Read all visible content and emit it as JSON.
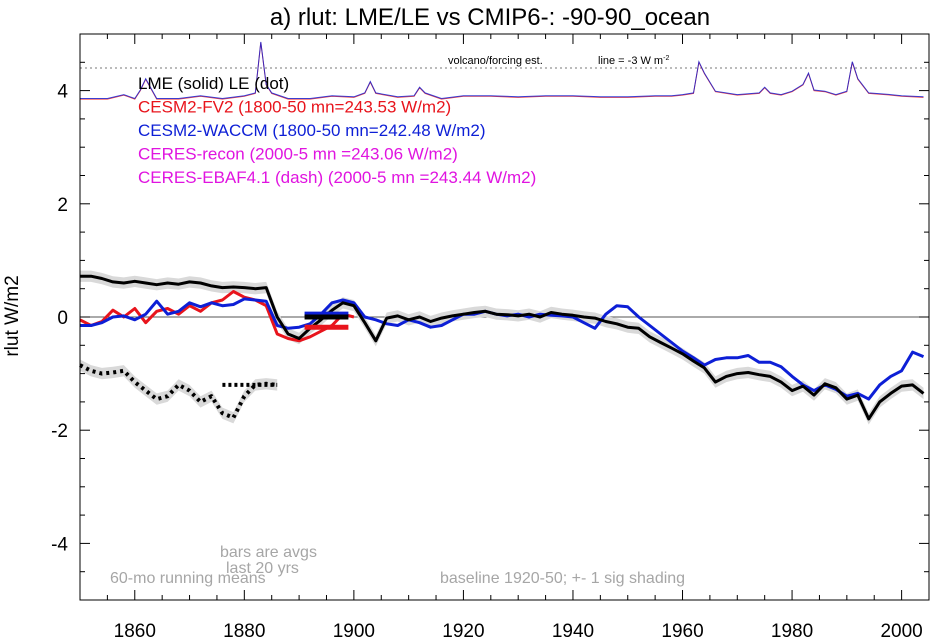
{
  "chart_data": {
    "type": "line",
    "title": "a) rlut: LME/LE vs CMIP6-: -90-90_ocean",
    "ylabel": "rlut W/m2",
    "xlabel": "",
    "xlim": [
      1850,
      2005
    ],
    "ylim": [
      -5,
      5
    ],
    "x_ticks": [
      1860,
      1880,
      1900,
      1920,
      1940,
      1960,
      1980,
      2000
    ],
    "y_ticks": [
      -4,
      -2,
      0,
      2,
      4
    ],
    "grid": false,
    "legend": [
      {
        "label": "LME (solid)   LE (dot)",
        "color": "#000000"
      },
      {
        "label": "CESM2-FV2 (1800-50 mn=243.53 W/m2)",
        "color": "#e8141c"
      },
      {
        "label": "CESM2-WACCM (1800-50 mn=242.48 W/m2)",
        "color": "#0d1fd6"
      },
      {
        "label": "CERES-recon (2000-5 mn =243.06 W/m2)",
        "color": "#e014e0"
      },
      {
        "label": "CERES-EBAF4.1 (dash) (2000-5 mn =243.44 W/m2)",
        "color": "#e014e0"
      }
    ],
    "annotations": {
      "volcano_label": "volcano/forcing est.",
      "line_label": "line = -3 W m",
      "line_label_sup": "-2",
      "bars_label_1": "bars are avgs",
      "bars_label_2": "last 20 yrs",
      "running_label": "60-mo running means",
      "baseline_label": "baseline 1920-50; +- 1 sig shading"
    },
    "reference_lines": [
      {
        "name": "zero",
        "y": 0
      },
      {
        "name": "volcano-dotted",
        "y": 4.4
      }
    ],
    "series": [
      {
        "name": "LME (solid)",
        "color": "#000000",
        "x": [
          1850,
          1852,
          1854,
          1856,
          1858,
          1860,
          1862,
          1864,
          1866,
          1868,
          1870,
          1872,
          1874,
          1876,
          1878,
          1880,
          1882,
          1884,
          1886,
          1888,
          1890,
          1892,
          1894,
          1896,
          1898,
          1900,
          1902,
          1904,
          1906,
          1908,
          1910,
          1912,
          1914,
          1916,
          1918,
          1920,
          1922,
          1924,
          1926,
          1928,
          1930,
          1932,
          1934,
          1936,
          1938,
          1940,
          1942,
          1944,
          1946,
          1948,
          1950,
          1952,
          1954,
          1956,
          1958,
          1960,
          1962,
          1964,
          1966,
          1968,
          1970,
          1972,
          1974,
          1976,
          1978,
          1980,
          1982,
          1984,
          1986,
          1988,
          1990,
          1992,
          1994,
          1996,
          1998,
          2000,
          2002,
          2004
        ],
        "y": [
          0.72,
          0.72,
          0.68,
          0.62,
          0.6,
          0.63,
          0.6,
          0.57,
          0.6,
          0.58,
          0.62,
          0.6,
          0.55,
          0.52,
          0.53,
          0.52,
          0.5,
          0.52,
          0.0,
          -0.3,
          -0.38,
          -0.2,
          -0.05,
          0.12,
          0.25,
          0.2,
          -0.1,
          -0.42,
          -0.02,
          0.02,
          -0.05,
          0.0,
          -0.08,
          -0.02,
          0.02,
          0.05,
          0.08,
          0.1,
          0.05,
          0.04,
          0.02,
          0.05,
          0.0,
          0.08,
          0.05,
          0.03,
          0.0,
          -0.02,
          -0.08,
          -0.12,
          -0.18,
          -0.2,
          -0.35,
          -0.45,
          -0.55,
          -0.65,
          -0.78,
          -0.9,
          -1.15,
          -1.05,
          -1.0,
          -0.98,
          -1.02,
          -1.05,
          -1.15,
          -1.3,
          -1.22,
          -1.38,
          -1.18,
          -1.25,
          -1.45,
          -1.38,
          -1.8,
          -1.5,
          -1.35,
          -1.22,
          -1.2,
          -1.35
        ]
      },
      {
        "name": "LE (dot)",
        "color": "#000000",
        "x": [
          1850,
          1852,
          1854,
          1856,
          1858,
          1860,
          1862,
          1864,
          1866,
          1868,
          1870,
          1872,
          1874,
          1876,
          1878,
          1880,
          1882,
          1884,
          1886
        ],
        "y": [
          -0.85,
          -0.95,
          -1.0,
          -0.98,
          -0.95,
          -1.15,
          -1.3,
          -1.45,
          -1.4,
          -1.2,
          -1.3,
          -1.5,
          -1.4,
          -1.7,
          -1.78,
          -1.4,
          -1.2,
          -1.18,
          -1.2
        ]
      },
      {
        "name": "CESM2-FV2",
        "color": "#e8141c",
        "x": [
          1850,
          1852,
          1854,
          1856,
          1858,
          1860,
          1862,
          1864,
          1866,
          1868,
          1870,
          1872,
          1874,
          1876,
          1878,
          1880,
          1882,
          1884,
          1886,
          1888,
          1890,
          1892,
          1894,
          1896,
          1898,
          1900
        ],
        "y": [
          -0.05,
          -0.15,
          -0.08,
          0.12,
          0.0,
          0.15,
          -0.1,
          0.1,
          0.15,
          0.05,
          0.2,
          0.1,
          0.25,
          0.3,
          0.45,
          0.35,
          0.3,
          0.2,
          -0.3,
          -0.38,
          -0.42,
          -0.35,
          -0.25,
          -0.15,
          0.05,
          0.0
        ]
      },
      {
        "name": "CESM2-WACCM",
        "color": "#0d1fd6",
        "x": [
          1850,
          1852,
          1854,
          1856,
          1858,
          1860,
          1862,
          1864,
          1866,
          1868,
          1870,
          1872,
          1874,
          1876,
          1878,
          1880,
          1882,
          1884,
          1886,
          1888,
          1890,
          1892,
          1894,
          1896,
          1898,
          1900,
          1902,
          1904,
          1906,
          1908,
          1910,
          1912,
          1914,
          1916,
          1918,
          1920,
          1922,
          1924,
          1926,
          1928,
          1930,
          1932,
          1934,
          1936,
          1938,
          1940,
          1942,
          1944,
          1946,
          1948,
          1950,
          1952,
          1954,
          1956,
          1958,
          1960,
          1962,
          1964,
          1966,
          1968,
          1970,
          1972,
          1974,
          1976,
          1978,
          1980,
          1982,
          1984,
          1986,
          1988,
          1990,
          1992,
          1994,
          1996,
          1998,
          2000,
          2002,
          2004
        ],
        "y": [
          -0.15,
          -0.15,
          -0.1,
          0.0,
          0.02,
          -0.05,
          0.05,
          0.28,
          0.05,
          0.1,
          0.25,
          0.18,
          0.25,
          0.2,
          0.22,
          0.32,
          0.3,
          0.28,
          -0.15,
          -0.2,
          -0.18,
          -0.12,
          0.05,
          0.25,
          0.3,
          0.25,
          0.0,
          -0.05,
          -0.12,
          -0.15,
          -0.05,
          -0.1,
          -0.18,
          -0.15,
          -0.05,
          0.05,
          0.05,
          0.1,
          0.05,
          0.02,
          0.05,
          0.0,
          0.05,
          0.03,
          0.02,
          0.0,
          -0.1,
          -0.2,
          0.05,
          0.2,
          0.18,
          0.0,
          -0.15,
          -0.3,
          -0.45,
          -0.6,
          -0.72,
          -0.85,
          -0.75,
          -0.72,
          -0.72,
          -0.68,
          -0.8,
          -0.8,
          -0.88,
          -1.05,
          -1.2,
          -1.3,
          -1.2,
          -1.28,
          -1.4,
          -1.35,
          -1.45,
          -1.2,
          -1.05,
          -0.95,
          -0.62,
          -0.7
        ]
      }
    ],
    "bars": [
      {
        "name": "bar-waccm",
        "color": "#0d1fd6",
        "x_start": 1891,
        "x_end": 1899,
        "y": 0.05
      },
      {
        "name": "bar-lme",
        "color": "#000000",
        "x_start": 1891,
        "x_end": 1899,
        "y": 0.0
      },
      {
        "name": "bar-fv2",
        "color": "#e8141c",
        "x_start": 1891,
        "x_end": 1899,
        "y": -0.18
      }
    ],
    "volcano_trace": {
      "x": [
        1850,
        1855,
        1858,
        1860,
        1861,
        1862,
        1864,
        1868,
        1872,
        1876,
        1880,
        1882,
        1883,
        1884,
        1885,
        1888,
        1892,
        1896,
        1900,
        1902,
        1903,
        1904,
        1908,
        1911,
        1912,
        1913,
        1916,
        1920,
        1925,
        1930,
        1935,
        1940,
        1945,
        1950,
        1955,
        1958,
        1960,
        1962,
        1963,
        1964,
        1966,
        1970,
        1974,
        1975,
        1976,
        1978,
        1980,
        1982,
        1983,
        1984,
        1986,
        1988,
        1990,
        1991,
        1992,
        1994,
        1998,
        2000,
        2004
      ],
      "y": [
        3.85,
        3.85,
        3.92,
        3.85,
        4.0,
        4.2,
        3.85,
        3.85,
        3.9,
        3.85,
        3.9,
        3.95,
        4.85,
        4.1,
        3.95,
        3.85,
        3.85,
        3.9,
        3.88,
        3.95,
        4.15,
        3.95,
        3.88,
        3.9,
        4.05,
        3.95,
        3.85,
        3.9,
        3.9,
        3.88,
        3.9,
        3.9,
        3.88,
        3.88,
        3.9,
        3.9,
        3.92,
        3.95,
        4.5,
        4.3,
        3.98,
        3.92,
        3.95,
        4.05,
        3.95,
        3.92,
        3.98,
        4.1,
        4.3,
        4.0,
        3.98,
        3.92,
        3.98,
        4.5,
        4.2,
        3.95,
        3.92,
        3.9,
        3.88
      ]
    }
  }
}
